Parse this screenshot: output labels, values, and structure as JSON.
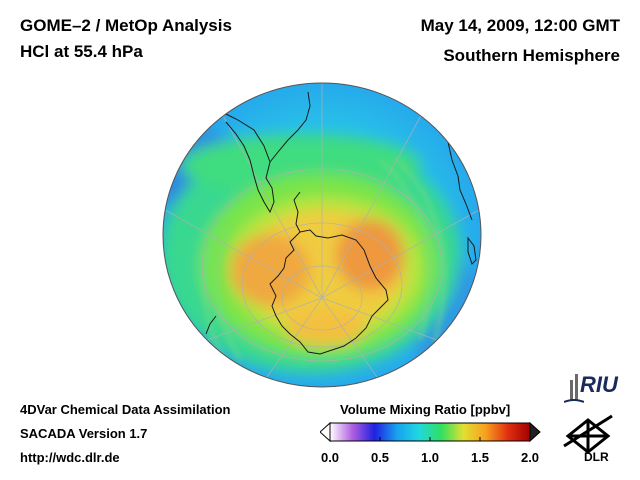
{
  "header": {
    "title_line1": "GOME–2 / MetOp Analysis",
    "title_line2": "HCl at 55.4 hPa",
    "datetime": "May 14, 2009, 12:00 GMT",
    "region": "Southern Hemisphere"
  },
  "footer": {
    "line1": "4DVar Chemical Data Assimilation",
    "line2": "SACADA Version 1.7",
    "line3": "http://wdc.dlr.de"
  },
  "colorbar": {
    "title": "Volume Mixing Ratio [ppbv]",
    "ticks": [
      "0.0",
      "0.5",
      "1.0",
      "1.5",
      "2.0"
    ],
    "range": [
      0.0,
      2.0
    ],
    "colors": [
      "#ffffff",
      "#b060e0",
      "#2020e0",
      "#18a0f0",
      "#20d8e0",
      "#30e060",
      "#e0e030",
      "#f8a020",
      "#e03010",
      "#a00000"
    ]
  },
  "logos": {
    "riu": "RIU",
    "dlr": "DLR"
  },
  "map": {
    "projection": "orthographic, south pole view",
    "variable": "HCl",
    "field_colors": {
      "outer": "#28b4ee",
      "low": "#2888e0",
      "ring": "#38dc88",
      "band": "#78e448",
      "core": "#f4c840",
      "max": "#f09838"
    }
  }
}
